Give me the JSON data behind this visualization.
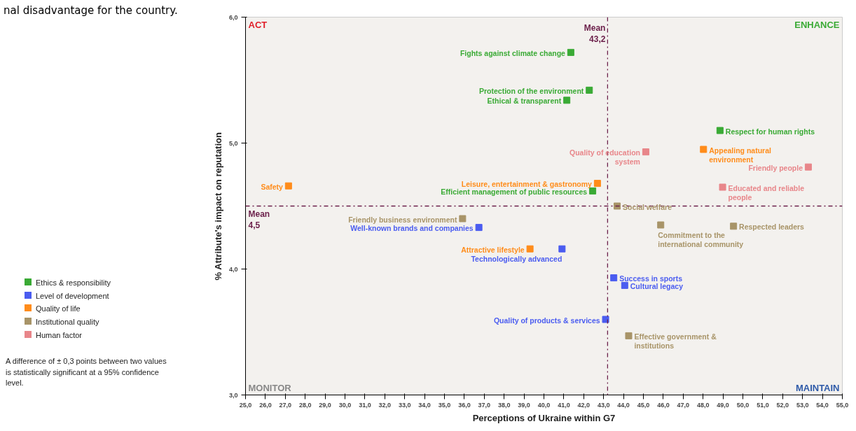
{
  "chart_data": {
    "type": "scatter",
    "xlabel": "Perceptions of Ukraine within G7",
    "ylabel": "% Attribute's impact on reputation",
    "xlim": [
      25.0,
      55.0
    ],
    "ylim": [
      3.0,
      6.0
    ],
    "xticks": [
      {
        "value": 25,
        "label": "25,0"
      },
      {
        "value": 26,
        "label": "26,0"
      },
      {
        "value": 27,
        "label": "27,0"
      },
      {
        "value": 28,
        "label": "28,0"
      },
      {
        "value": 29,
        "label": "29,0"
      },
      {
        "value": 30,
        "label": "30,0"
      },
      {
        "value": 31,
        "label": "31,0"
      },
      {
        "value": 32,
        "label": "32,0"
      },
      {
        "value": 33,
        "label": "33,0"
      },
      {
        "value": 34,
        "label": "34,0"
      },
      {
        "value": 35,
        "label": "35,0"
      },
      {
        "value": 36,
        "label": "36,0"
      },
      {
        "value": 37,
        "label": "37,0"
      },
      {
        "value": 38,
        "label": "38,0"
      },
      {
        "value": 39,
        "label": "39,0"
      },
      {
        "value": 40,
        "label": "40,0"
      },
      {
        "value": 41,
        "label": "41,0"
      },
      {
        "value": 42,
        "label": "42,0"
      },
      {
        "value": 43,
        "label": "43,0"
      },
      {
        "value": 44,
        "label": "44,0"
      },
      {
        "value": 45,
        "label": "45,0"
      },
      {
        "value": 46,
        "label": "46,0"
      },
      {
        "value": 47,
        "label": "47,0"
      },
      {
        "value": 48,
        "label": "48,0"
      },
      {
        "value": 49,
        "label": "49,0"
      },
      {
        "value": 50,
        "label": "50,0"
      },
      {
        "value": 51,
        "label": "51,0"
      },
      {
        "value": 52,
        "label": "52,0"
      },
      {
        "value": 53,
        "label": "53,0"
      },
      {
        "value": 54,
        "label": "54,0"
      },
      {
        "value": 55,
        "label": "55,0"
      }
    ],
    "yticks": [
      {
        "value": 3,
        "label": "3,0"
      },
      {
        "value": 4,
        "label": "4,0"
      },
      {
        "value": 5,
        "label": "5,0"
      },
      {
        "value": 6,
        "label": "6,0"
      }
    ],
    "grid": false,
    "marker": "square",
    "legend": "left",
    "series": [
      {
        "name": "Ethics & responsibility",
        "color": "#3aaa35",
        "x": [
          41.35,
          42.28,
          41.15,
          48.85,
          42.45
        ],
        "values": [
          5.72,
          5.42,
          5.34,
          5.1,
          4.62
        ]
      },
      {
        "name": "Level of development",
        "color": "#4a5cf0",
        "x": [
          36.73,
          40.91,
          43.51,
          44.06,
          43.1
        ],
        "values": [
          4.33,
          4.16,
          3.93,
          3.87,
          3.6
        ]
      },
      {
        "name": "Quality of life",
        "color": "#ff8c1a",
        "x": [
          48.02,
          42.69,
          27.16,
          39.3
        ],
        "values": [
          4.95,
          4.68,
          4.66,
          4.16
        ]
      },
      {
        "name": "Institutional quality",
        "color": "#a89468",
        "x": [
          43.68,
          35.91,
          45.87,
          49.53,
          44.26
        ],
        "values": [
          4.5,
          4.4,
          4.35,
          4.34,
          3.47
        ]
      },
      {
        "name": "Human factor",
        "color": "#e8868a",
        "x": [
          45.12,
          53.29,
          48.98
        ],
        "values": [
          4.93,
          4.81,
          4.65
        ]
      }
    ],
    "ref_lines": [
      {
        "axis": "x",
        "value": 43.2,
        "label": "Mean 43,2",
        "color": "#6b1f4a",
        "line_style": "dashdot"
      },
      {
        "axis": "y",
        "value": 4.5,
        "label": "Mean 4,5",
        "color": "#6b1f4a",
        "line_style": "dashdot"
      }
    ],
    "annotations": [
      "ACT",
      "ENHANCE",
      "MONITOR",
      "MAINTAIN",
      "A difference of ± 0,3 points between two values is statistically significant at a 95% confidence level.",
      "nal disadvantage for the country.",
      {
        "text": "Fights against climate change",
        "x": 41.35,
        "y": 5.72
      },
      {
        "text": "Protection of the environment",
        "x": 42.28,
        "y": 5.42
      },
      {
        "text": "Ethical & transparent",
        "x": 41.15,
        "y": 5.34
      },
      {
        "text": "Respect for human rights",
        "x": 48.85,
        "y": 5.1
      },
      {
        "text": "Efficient management of public resources",
        "x": 42.45,
        "y": 4.62
      },
      {
        "text": "Well-known brands and companies",
        "x": 36.73,
        "y": 4.33
      },
      {
        "text": "Technologically advanced",
        "x": 40.91,
        "y": 4.16
      },
      {
        "text": "Success in sports",
        "x": 43.51,
        "y": 3.93
      },
      {
        "text": "Cultural legacy",
        "x": 44.06,
        "y": 3.87
      },
      {
        "text": "Quality of products & services",
        "x": 43.1,
        "y": 3.6
      },
      {
        "text": "Appealing natural environment",
        "x": 48.02,
        "y": 4.95
      },
      {
        "text": "Leisure, entertainment & gastronomy",
        "x": 42.69,
        "y": 4.68
      },
      {
        "text": "Safety",
        "x": 27.16,
        "y": 4.66
      },
      {
        "text": "Attractive lifestyle",
        "x": 39.3,
        "y": 4.16
      },
      {
        "text": "Social welfare",
        "x": 43.68,
        "y": 4.5
      },
      {
        "text": "Friendly business environment",
        "x": 35.91,
        "y": 4.4
      },
      {
        "text": "Commitment to the international community",
        "x": 45.87,
        "y": 4.35
      },
      {
        "text": "Respected leaders",
        "x": 49.53,
        "y": 4.34
      },
      {
        "text": "Effective government & institutions",
        "x": 44.26,
        "y": 3.47
      },
      {
        "text": "Quality of education system",
        "x": 45.12,
        "y": 4.93
      },
      {
        "text": "Friendly people",
        "x": 53.29,
        "y": 4.81
      },
      {
        "text": "Educated and reliable people",
        "x": 48.98,
        "y": 4.65
      }
    ]
  }
}
